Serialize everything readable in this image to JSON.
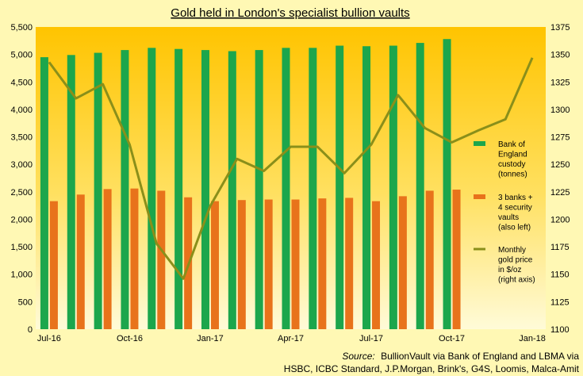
{
  "chart_data": {
    "type": "bar",
    "title": "Gold held in London's specialist bullion vaults",
    "categories": [
      "Jul-16",
      "Aug-16",
      "Sep-16",
      "Oct-16",
      "Nov-16",
      "Dec-16",
      "Jan-17",
      "Feb-17",
      "Mar-17",
      "Apr-17",
      "May-17",
      "Jun-17",
      "Jul-17",
      "Aug-17",
      "Sep-17",
      "Oct-17",
      "Nov-17",
      "Dec-17",
      "Jan-18"
    ],
    "x_tick_labels": [
      "Jul-16",
      "",
      "",
      "Oct-16",
      "",
      "",
      "Jan-17",
      "",
      "",
      "Apr-17",
      "",
      "",
      "Jul-17",
      "",
      "",
      "Oct-17",
      "",
      "",
      "Jan-18"
    ],
    "left_axis": {
      "min": 0,
      "max": 5500,
      "step": 500,
      "tick_labels": [
        "0",
        "500",
        "1,000",
        "1,500",
        "2,000",
        "2,500",
        "3,000",
        "3,500",
        "4,000",
        "4,500",
        "5,000",
        "5,500"
      ]
    },
    "right_axis": {
      "min": 1100,
      "max": 1375,
      "step": 25,
      "tick_labels": [
        "1100",
        "1125",
        "1150",
        "1175",
        "1200",
        "1225",
        "1250",
        "1275",
        "1300",
        "1325",
        "1350",
        "1375"
      ]
    },
    "series": [
      {
        "name": "Bank of England custody (tonnes)",
        "type": "bar",
        "axis": "left",
        "color": "#1ca64c",
        "values": [
          4950,
          4990,
          5030,
          5080,
          5120,
          5100,
          5080,
          5060,
          5080,
          5120,
          5120,
          5160,
          5150,
          5160,
          5210,
          5280,
          null,
          null,
          null
        ]
      },
      {
        "name": "3 banks + 4 security vaults (also left)",
        "type": "bar",
        "axis": "left",
        "color": "#e8731b",
        "values": [
          2330,
          2450,
          2550,
          2560,
          2520,
          2400,
          2330,
          2350,
          2360,
          2360,
          2380,
          2390,
          2330,
          2420,
          2520,
          2540,
          null,
          null,
          null
        ]
      },
      {
        "name": "Monthly gold price in $/oz (right axis)",
        "type": "line",
        "axis": "right",
        "color": "#8a8f1a",
        "values": [
          1343,
          1310,
          1323,
          1268,
          1178,
          1146,
          1212,
          1255,
          1244,
          1266,
          1266,
          1242,
          1268,
          1313,
          1283,
          1270,
          1281,
          1291,
          1347
        ]
      }
    ],
    "legend": {
      "position": "right",
      "entries": [
        [
          "Bank of",
          "England",
          "custody",
          "(tonnes)"
        ],
        [
          "3 banks +",
          "4 security",
          "vaults",
          "(also left)"
        ],
        [
          "Monthly",
          "gold price",
          "in $/oz",
          "(right axis)"
        ]
      ]
    },
    "source_prefix": "Source:",
    "source_line1": "BullionVault via Bank of England and LBMA via",
    "source_line2": "HSBC, ICBC Standard, J.P.Morgan, Brink's, G4S, Loomis, Malca-Amit",
    "grid": false
  }
}
